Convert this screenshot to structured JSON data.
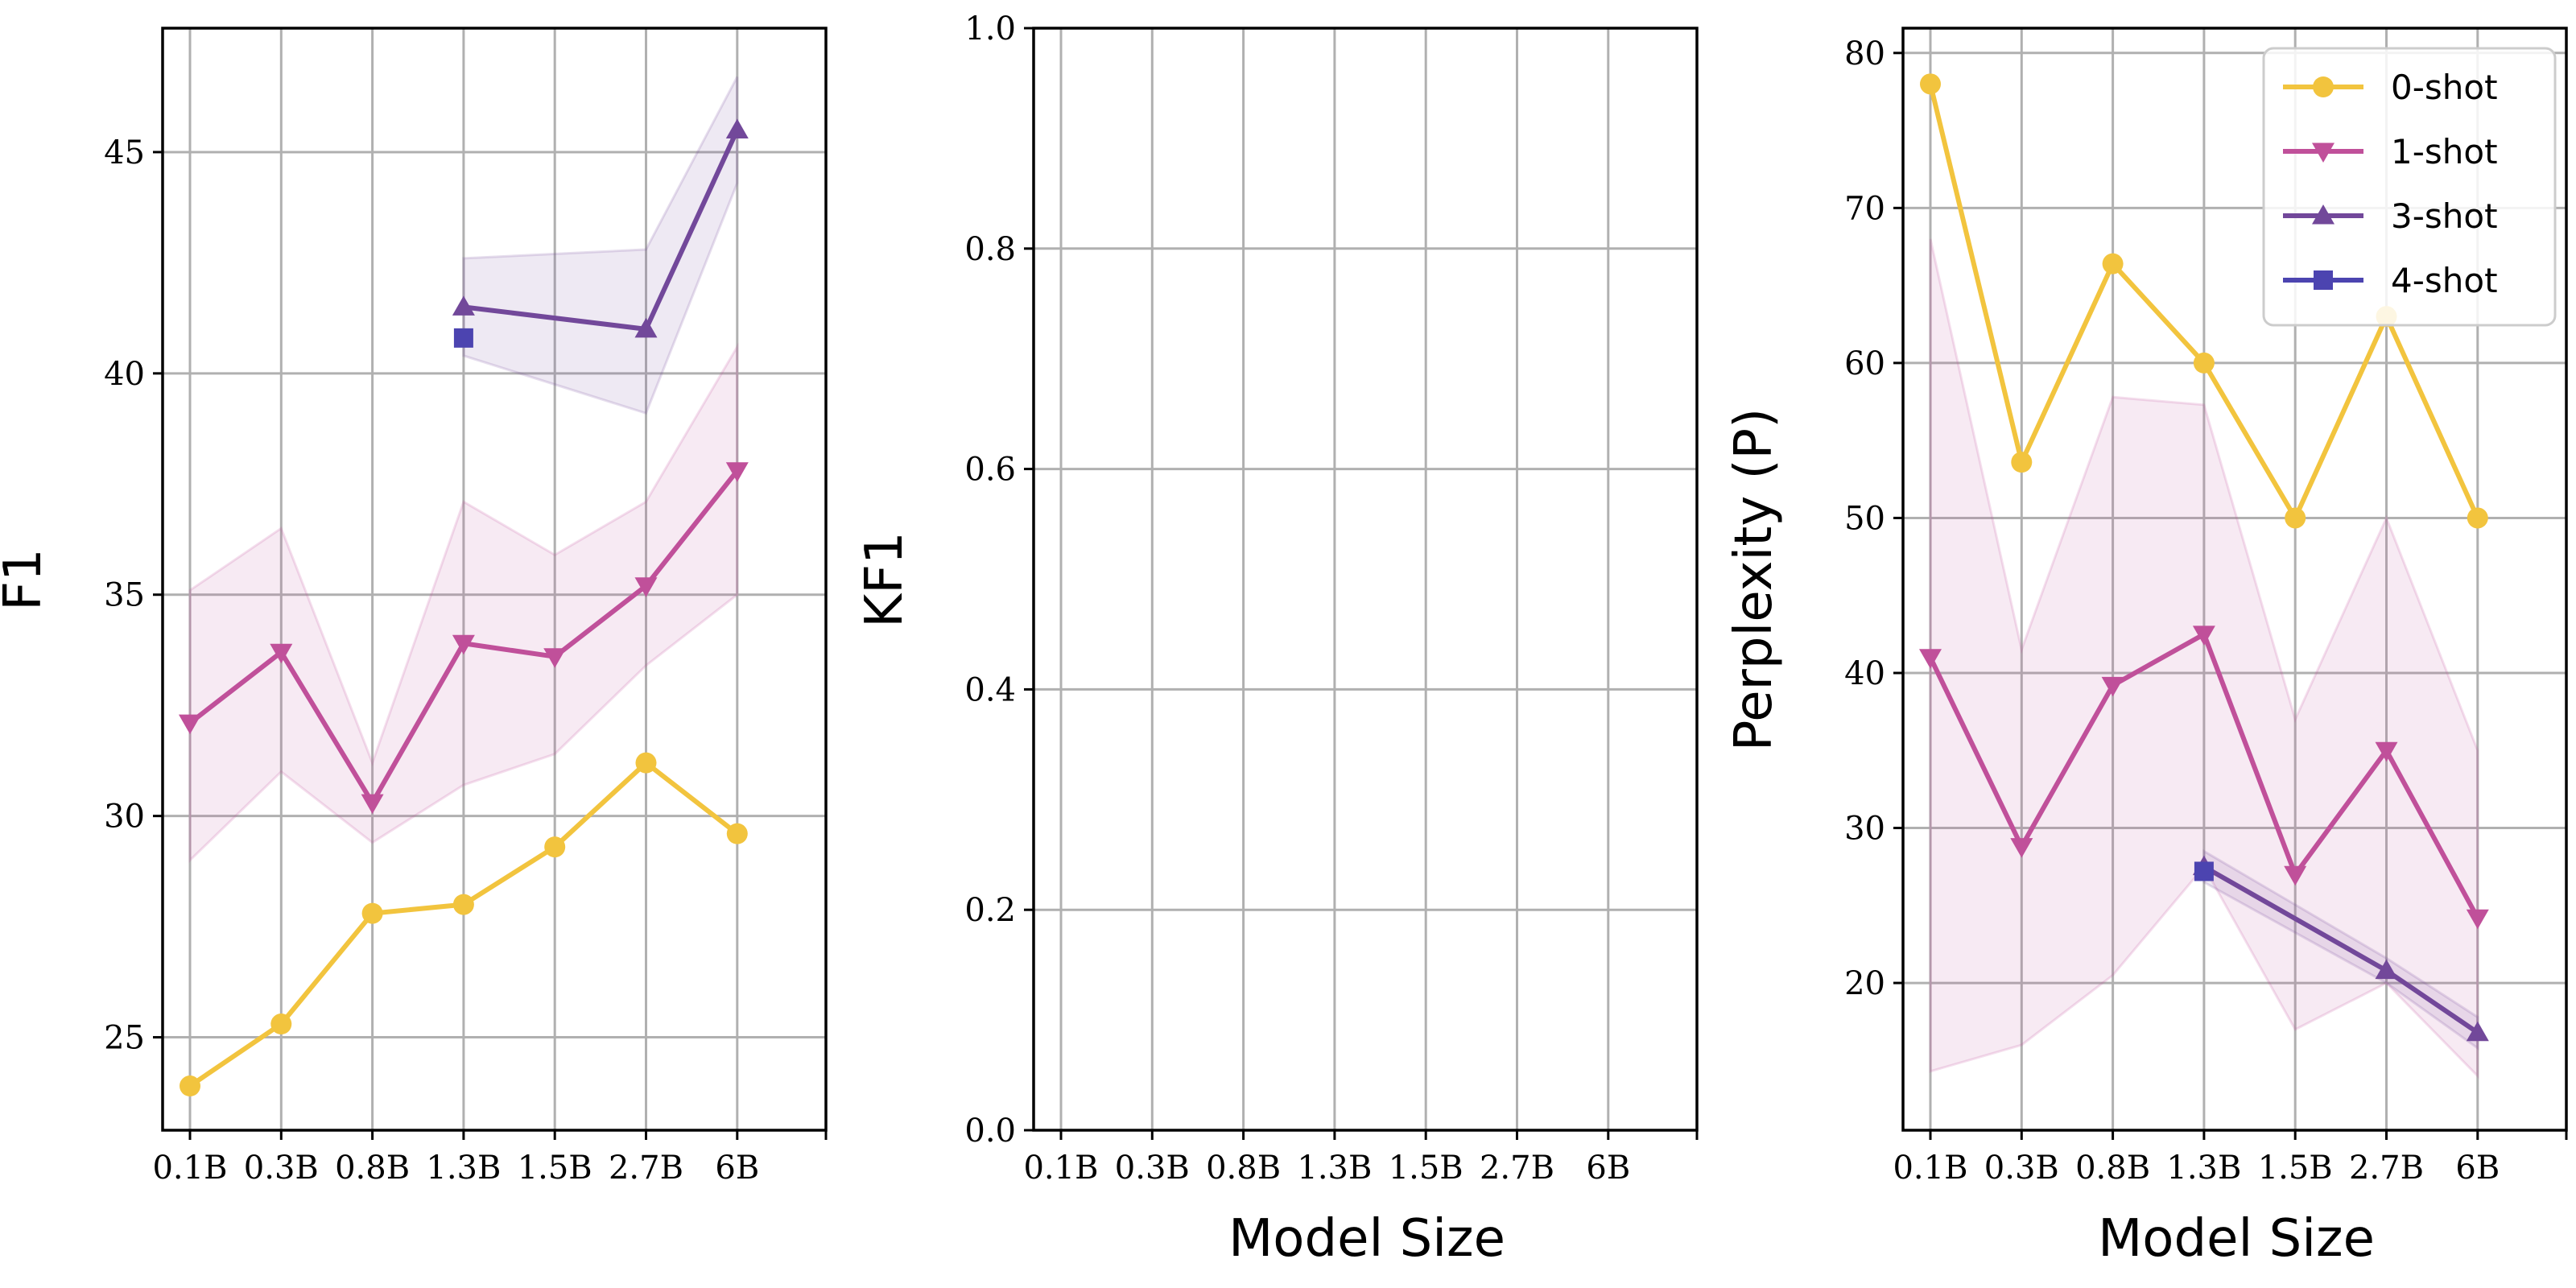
{
  "chart_data": [
    {
      "type": "line",
      "categories": [
        "0.1B",
        "0.3B",
        "0.8B",
        "1.3B",
        "1.5B",
        "2.7B",
        "6B"
      ],
      "xlabel": "",
      "ylabel": "F1",
      "ylim": [
        22.9,
        47.8
      ],
      "yticks": [
        25,
        30,
        35,
        40,
        45
      ],
      "grid": true,
      "series": [
        {
          "name": "0-shot",
          "color": "#f2c43e",
          "marker": "circle",
          "values": [
            23.9,
            25.3,
            27.8,
            28.0,
            29.3,
            31.2,
            29.6
          ]
        },
        {
          "name": "1-shot",
          "color": "#c0509a",
          "marker": "triangle-down",
          "values": [
            32.1,
            33.7,
            30.3,
            33.9,
            33.6,
            35.2,
            37.8
          ],
          "band_low": [
            29.0,
            31.0,
            29.4,
            30.7,
            31.4,
            33.4,
            35.0
          ],
          "band_high": [
            35.1,
            36.5,
            31.2,
            37.1,
            35.9,
            37.1,
            40.6
          ]
        },
        {
          "name": "3-shot",
          "color": "#72489a",
          "marker": "triangle-up",
          "values": [
            null,
            null,
            null,
            41.5,
            null,
            41.0,
            45.5
          ],
          "band_low": [
            null,
            null,
            null,
            40.4,
            null,
            39.1,
            44.3
          ],
          "band_high": [
            null,
            null,
            null,
            42.6,
            null,
            42.8,
            46.7
          ]
        },
        {
          "name": "4-shot",
          "color": "#4c44b0",
          "marker": "square",
          "values": [
            null,
            null,
            null,
            40.8,
            null,
            null,
            null
          ]
        }
      ]
    },
    {
      "type": "line",
      "categories": [
        "0.1B",
        "0.3B",
        "0.8B",
        "1.3B",
        "1.5B",
        "2.7B",
        "6B"
      ],
      "xlabel": "Model Size",
      "ylabel": "KF1",
      "ylim": [
        0.0,
        1.0
      ],
      "yticks": [
        "0.0",
        "0.2",
        "0.4",
        "0.6",
        "0.8",
        "1.0"
      ],
      "grid": true,
      "series": []
    },
    {
      "type": "line",
      "categories": [
        "0.1B",
        "0.3B",
        "0.8B",
        "1.3B",
        "1.5B",
        "2.7B",
        "6B"
      ],
      "xlabel": "Model Size",
      "ylabel": "Perplexity (P)",
      "ylim": [
        10.5,
        81.6
      ],
      "yticks": [
        20,
        30,
        40,
        50,
        60,
        70,
        80
      ],
      "grid": true,
      "legend": "top-right",
      "series": [
        {
          "name": "0-shot",
          "color": "#f2c43e",
          "marker": "circle",
          "values": [
            78.0,
            53.6,
            66.4,
            60.0,
            50.0,
            63.0,
            50.0
          ]
        },
        {
          "name": "1-shot",
          "color": "#c0509a",
          "marker": "triangle-down",
          "values": [
            41.0,
            28.8,
            39.2,
            42.5,
            27.0,
            35.0,
            24.2
          ],
          "band_low": [
            14.3,
            16.0,
            20.5,
            27.5,
            17.0,
            20.0,
            14.0
          ],
          "band_high": [
            68.0,
            41.5,
            57.8,
            57.3,
            37.0,
            50.0,
            35.0
          ]
        },
        {
          "name": "3-shot",
          "color": "#72489a",
          "marker": "triangle-up",
          "values": [
            null,
            null,
            null,
            27.5,
            null,
            20.8,
            16.8
          ],
          "band_low": [
            null,
            null,
            null,
            26.5,
            null,
            20.0,
            15.8
          ],
          "band_high": [
            null,
            null,
            null,
            28.5,
            null,
            21.6,
            17.8
          ]
        },
        {
          "name": "4-shot",
          "color": "#4c44b0",
          "marker": "square",
          "values": [
            null,
            null,
            null,
            27.2,
            null,
            null,
            null
          ]
        }
      ]
    }
  ]
}
